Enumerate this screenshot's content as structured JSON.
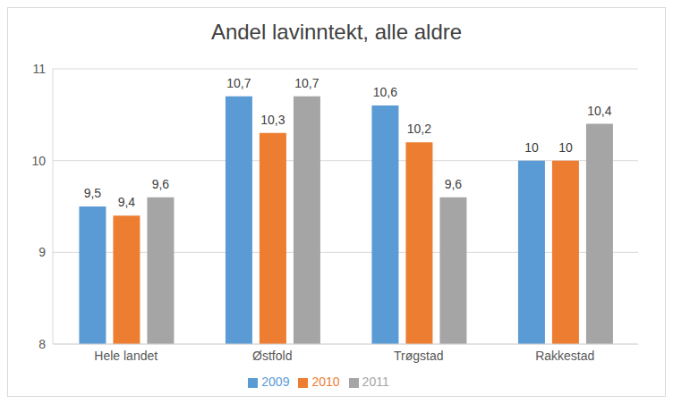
{
  "chart_data": {
    "type": "bar",
    "title": "Andel lavinntekt, alle aldre",
    "categories": [
      "Hele landet",
      "Østfold",
      "Trøgstad",
      "Rakkestad"
    ],
    "series": [
      {
        "name": "2009",
        "color": "#5b9bd5",
        "values": [
          9.5,
          10.7,
          10.6,
          10
        ],
        "value_labels": [
          "9,5",
          "10,7",
          "10,6",
          "10"
        ]
      },
      {
        "name": "2010",
        "color": "#ed7d31",
        "values": [
          9.4,
          10.3,
          10.2,
          10
        ],
        "value_labels": [
          "9,4",
          "10,3",
          "10,2",
          "10"
        ]
      },
      {
        "name": "2011",
        "color": "#a5a5a5",
        "values": [
          9.6,
          10.7,
          9.6,
          10.4
        ],
        "value_labels": [
          "9,6",
          "10,7",
          "9,6",
          "10,4"
        ]
      }
    ],
    "ylim": [
      8,
      11
    ],
    "yticks": [
      8,
      9,
      10,
      11
    ],
    "grid": true,
    "legend": "bottom",
    "data_labels": true
  }
}
